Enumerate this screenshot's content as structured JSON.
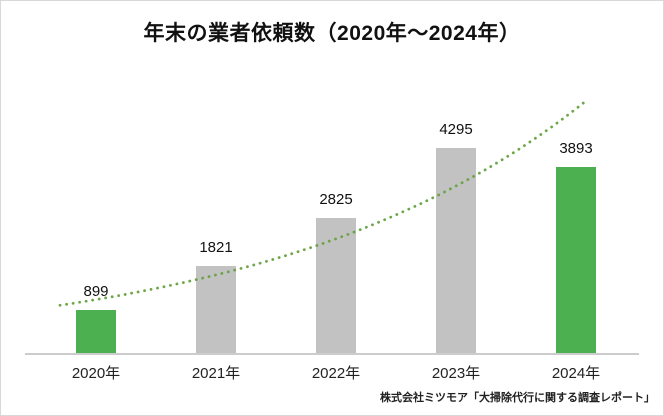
{
  "chart_data": {
    "type": "bar",
    "title": "年末の業者依頼数（2020年～2024年）",
    "categories": [
      "2020年",
      "2021年",
      "2022年",
      "2023年",
      "2024年"
    ],
    "values": [
      899,
      1821,
      2825,
      4295,
      3893
    ],
    "bar_colors": [
      "#4caf50",
      "#c3c2c2",
      "#c3c2c2",
      "#c3c2c2",
      "#4caf50"
    ],
    "xlabel": "",
    "ylabel": "",
    "ylim": [
      0,
      4500
    ],
    "grid": false,
    "legend": false,
    "trendline": {
      "style": "dotted",
      "color": "#66a23f",
      "fit": "exponential",
      "values_at_categories": [
        1119,
        1638,
        2397,
        3508,
        5134
      ]
    },
    "source": "株式会社ミツモア「大掃除代行に関する調査レポート」"
  },
  "trend_fit": {
    "a": 1119,
    "b": 0.38,
    "t_start": -0.3,
    "t_end": 4.1
  }
}
